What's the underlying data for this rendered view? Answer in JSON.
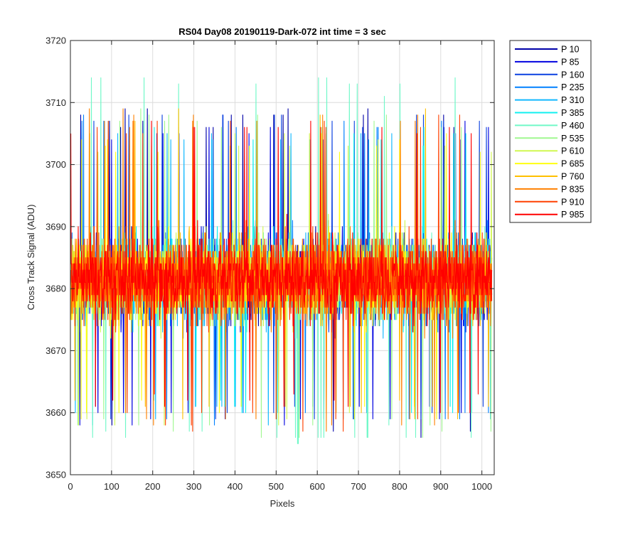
{
  "chart_data": {
    "type": "line",
    "title": "RS04 Day08 20190119-Dark-072 int time = 3 sec",
    "xlabel": "Pixels",
    "ylabel": "Cross Track Signal (ADU)",
    "xlim": [
      0,
      1030
    ],
    "ylim": [
      3650,
      3720
    ],
    "x_ticks": [
      0,
      100,
      200,
      300,
      400,
      500,
      600,
      700,
      800,
      900,
      1000
    ],
    "y_ticks": [
      3650,
      3660,
      3670,
      3680,
      3690,
      3700,
      3710,
      3720
    ],
    "grid": true,
    "legend_position": "outside-right-top",
    "x_range": [
      1,
      1024
    ],
    "series": [
      {
        "name": "P 10",
        "color": "#0000a8",
        "mean": 3681.5,
        "sd": 5.3,
        "min": 3656,
        "max": 3709
      },
      {
        "name": "P 85",
        "color": "#0000e0",
        "mean": 3681.5,
        "sd": 5.3,
        "min": 3658,
        "max": 3707
      },
      {
        "name": "P 160",
        "color": "#0a40e0",
        "mean": 3681.5,
        "sd": 5.3,
        "min": 3659,
        "max": 3709
      },
      {
        "name": "P 235",
        "color": "#0080ff",
        "mean": 3681.5,
        "sd": 5.3,
        "min": 3658,
        "max": 3708
      },
      {
        "name": "P 310",
        "color": "#10b8ff",
        "mean": 3681.5,
        "sd": 5.3,
        "min": 3658,
        "max": 3706
      },
      {
        "name": "P 385",
        "color": "#10f0f0",
        "mean": 3681.5,
        "sd": 5.3,
        "min": 3659,
        "max": 3706
      },
      {
        "name": "P 460",
        "color": "#70f8c8",
        "mean": 3681.5,
        "sd": 5.3,
        "min": 3655,
        "max": 3714
      },
      {
        "name": "P 535",
        "color": "#a0f890",
        "mean": 3681.5,
        "sd": 5.3,
        "min": 3656,
        "max": 3709
      },
      {
        "name": "P 610",
        "color": "#d0f850",
        "mean": 3681.5,
        "sd": 5.3,
        "min": 3657,
        "max": 3705
      },
      {
        "name": "P 685",
        "color": "#ffff10",
        "mean": 3681.5,
        "sd": 5.3,
        "min": 3659,
        "max": 3705
      },
      {
        "name": "P 760",
        "color": "#ffc000",
        "mean": 3681.5,
        "sd": 5.3,
        "min": 3659,
        "max": 3710
      },
      {
        "name": "P 835",
        "color": "#ff8000",
        "mean": 3681.5,
        "sd": 5.3,
        "min": 3657,
        "max": 3709
      },
      {
        "name": "P 910",
        "color": "#ff4000",
        "mean": 3681.5,
        "sd": 5.3,
        "min": 3657,
        "max": 3708
      },
      {
        "name": "P 985",
        "color": "#ff0000",
        "mean": 3681.5,
        "sd": 5.3,
        "min": 3660,
        "max": 3707
      }
    ]
  }
}
